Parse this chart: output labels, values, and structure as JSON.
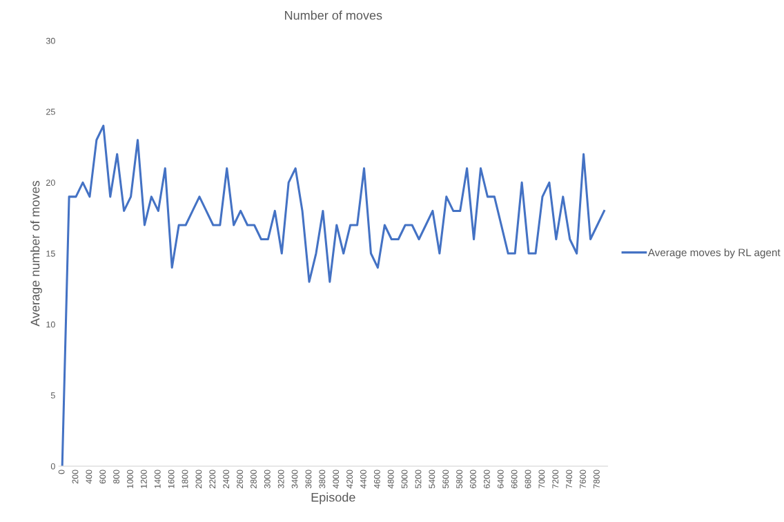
{
  "chart_data": {
    "type": "line",
    "title": "Number of moves",
    "xlabel": "Episode",
    "ylabel": "Average number of moves",
    "categories": [
      "0",
      null,
      "200",
      null,
      "400",
      null,
      "600",
      null,
      "800",
      null,
      "1000",
      null,
      "1200",
      null,
      "1400",
      null,
      "1600",
      null,
      "1800",
      null,
      "2000",
      null,
      "2200",
      null,
      "2400",
      null,
      "2600",
      null,
      "2800",
      null,
      "3000",
      null,
      "3200",
      null,
      "3400",
      null,
      "3600",
      null,
      "3800",
      null,
      "4000",
      null,
      "4200",
      null,
      "4400",
      null,
      "4600",
      null,
      "4800",
      null,
      "5000",
      null,
      "5200",
      null,
      "5400",
      null,
      "5600",
      null,
      "5800",
      null,
      "6000",
      null,
      "6200",
      null,
      "6400",
      null,
      "6600",
      null,
      "6800",
      null,
      "7000",
      null,
      "7200",
      null,
      "7400",
      null,
      "7600",
      null,
      "7800",
      null
    ],
    "series": [
      {
        "name": "Average moves by RL agent",
        "color": "#4472c4",
        "values": [
          0,
          19,
          19,
          20,
          19,
          23,
          24,
          19,
          22,
          18,
          19,
          23,
          17,
          19,
          18,
          21,
          14,
          17,
          17,
          18,
          19,
          18,
          17,
          17,
          21,
          17,
          18,
          17,
          17,
          16,
          16,
          18,
          15,
          20,
          21,
          18,
          13,
          15,
          18,
          13,
          17,
          15,
          17,
          17,
          21,
          15,
          14,
          17,
          16,
          16,
          17,
          17,
          16,
          17,
          18,
          15,
          19,
          18,
          18,
          21,
          16,
          21,
          19,
          19,
          17,
          15,
          15,
          20,
          15,
          15,
          19,
          20,
          16,
          19,
          16,
          15,
          22,
          16,
          17,
          18
        ]
      }
    ],
    "ylim": [
      0,
      30
    ],
    "yticks": [
      0,
      5,
      10,
      15,
      20,
      25,
      30
    ],
    "grid": false,
    "legend": "right",
    "marker": "none",
    "line_style": "solid"
  }
}
